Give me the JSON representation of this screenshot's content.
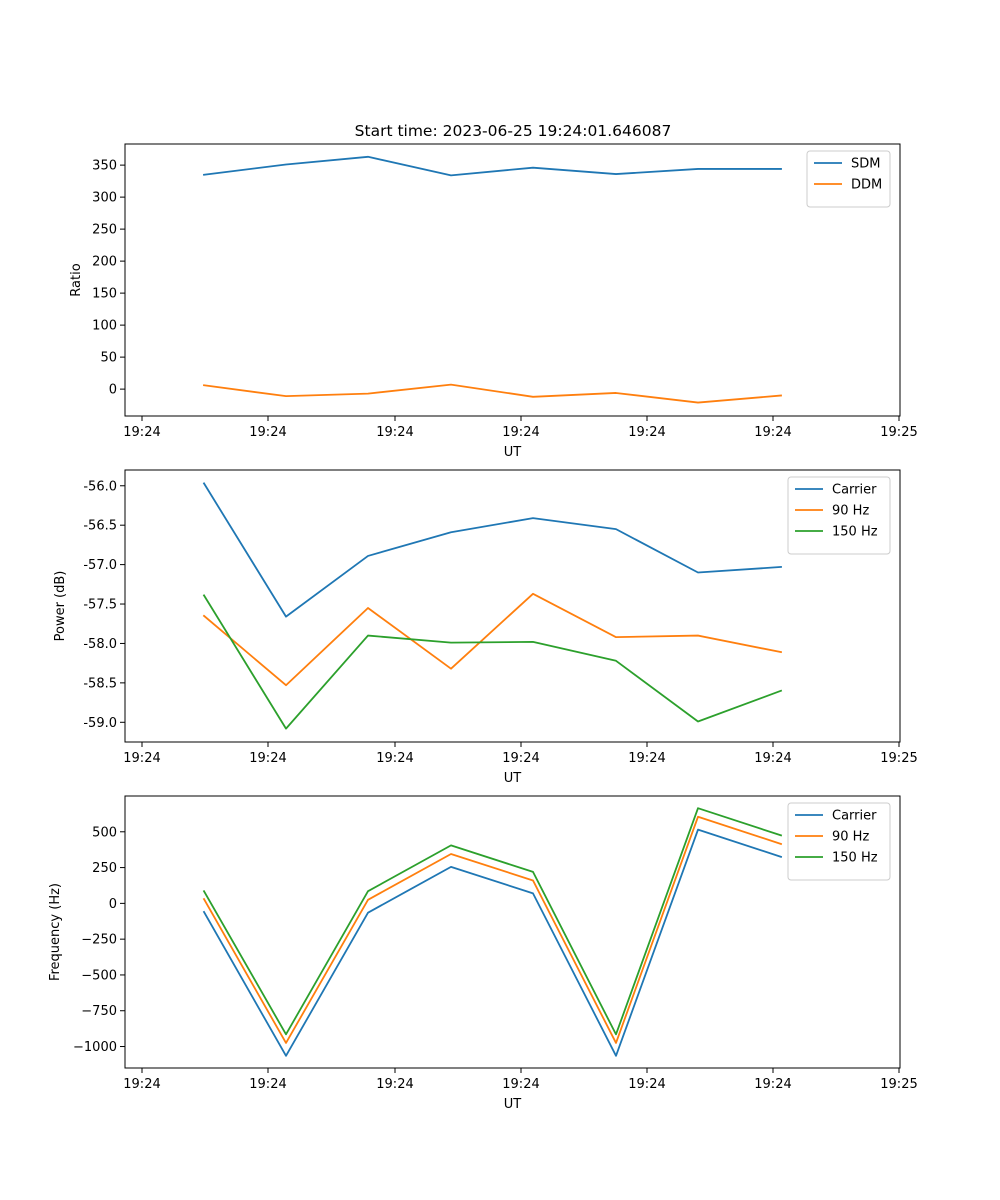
{
  "title": "Start time: 2023-06-25 19:24:01.646087",
  "chart_data": [
    {
      "type": "line",
      "title": "Start time: 2023-06-25 19:24:01.646087",
      "xlabel": "UT",
      "ylabel": "Ratio",
      "x_ticks": [
        "19:24",
        "19:24",
        "19:24",
        "19:24",
        "19:24",
        "19:24",
        "19:25"
      ],
      "y_ticks": [
        "0",
        "50",
        "100",
        "150",
        "200",
        "250",
        "300",
        "350"
      ],
      "x": [
        1,
        2,
        3,
        4,
        5,
        6,
        7,
        8
      ],
      "ylim": [
        -42,
        383
      ],
      "legend_position": "upper right",
      "grid": false,
      "series": [
        {
          "name": "SDM",
          "color": "#1f77b4",
          "values": [
            335,
            351,
            363,
            334,
            346,
            336,
            344,
            344
          ]
        },
        {
          "name": "DDM",
          "color": "#ff7f0e",
          "values": [
            6,
            -11,
            -7,
            7,
            -12,
            -6,
            -21,
            -10
          ]
        }
      ]
    },
    {
      "type": "line",
      "title": "",
      "xlabel": "UT",
      "ylabel": "Power (dB)",
      "x_ticks": [
        "19:24",
        "19:24",
        "19:24",
        "19:24",
        "19:24",
        "19:24",
        "19:25"
      ],
      "y_ticks": [
        "-59.0",
        "-58.5",
        "-58.0",
        "-57.5",
        "-57.0",
        "-56.5",
        "-56.0"
      ],
      "x": [
        1,
        2,
        3,
        4,
        5,
        6,
        7,
        8
      ],
      "ylim": [
        -59.25,
        -55.8
      ],
      "legend_position": "upper right",
      "grid": false,
      "series": [
        {
          "name": "Carrier",
          "color": "#1f77b4",
          "values": [
            -55.97,
            -57.66,
            -56.89,
            -56.59,
            -56.41,
            -56.55,
            -57.1,
            -57.03
          ]
        },
        {
          "name": "90 Hz",
          "color": "#ff7f0e",
          "values": [
            -57.65,
            -58.53,
            -57.55,
            -58.32,
            -57.37,
            -57.92,
            -57.9,
            -58.11
          ]
        },
        {
          "name": "150 Hz",
          "color": "#2ca02c",
          "values": [
            -57.39,
            -59.08,
            -57.9,
            -57.99,
            -57.98,
            -58.22,
            -58.99,
            -58.6
          ]
        }
      ]
    },
    {
      "type": "line",
      "title": "",
      "xlabel": "UT",
      "ylabel": "Frequency (Hz)",
      "x_ticks": [
        "19:24",
        "19:24",
        "19:24",
        "19:24",
        "19:24",
        "19:24",
        "19:25"
      ],
      "y_ticks": [
        "−1000",
        "−750",
        "−500",
        "−250",
        "0",
        "250",
        "500"
      ],
      "x": [
        1,
        2,
        3,
        4,
        5,
        6,
        7,
        8
      ],
      "ylim": [
        -1150,
        750
      ],
      "legend_position": "upper right",
      "grid": false,
      "series": [
        {
          "name": "Carrier",
          "color": "#1f77b4",
          "values": [
            -60,
            -1065,
            -65,
            255,
            70,
            -1065,
            515,
            325
          ]
        },
        {
          "name": "90 Hz",
          "color": "#ff7f0e",
          "values": [
            30,
            -975,
            25,
            345,
            160,
            -975,
            605,
            415
          ]
        },
        {
          "name": "150 Hz",
          "color": "#2ca02c",
          "values": [
            85,
            -915,
            85,
            405,
            220,
            -915,
            665,
            475
          ]
        }
      ]
    }
  ]
}
